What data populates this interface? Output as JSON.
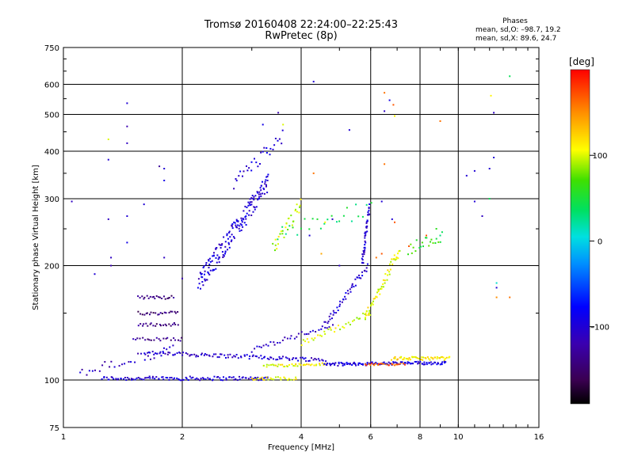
{
  "header": {
    "title_line1": "Tromsø 20160408 22:24:00–22:25:43",
    "title_line2": "RwPretec (8p)"
  },
  "stats": {
    "heading": "Phases",
    "line_o": "mean, sd,O: –98.7, 19.2",
    "line_x": "mean, sd,X:  89.6, 24.7"
  },
  "colorbar": {
    "unit_label": "[deg]",
    "ticks": [
      {
        "value": 100,
        "label": "100"
      },
      {
        "value": 0,
        "label": "0"
      },
      {
        "value": -100,
        "label": "–100"
      }
    ],
    "vmin": -190,
    "vmax": 200
  },
  "chart_data": {
    "type": "scatter",
    "title": "Tromsø 20160408 22:24:00–22:25:43",
    "subtitle": "RwPretec (8p)",
    "xlabel": "Frequency [MHz]",
    "ylabel": "Stationary phase Virtual Height [km]",
    "x_scale": "log",
    "y_scale": "log",
    "xlim": [
      1,
      16
    ],
    "ylim": [
      75,
      750
    ],
    "grid": true,
    "x_ticks": [
      {
        "value": 1,
        "label": "1"
      },
      {
        "value": 2,
        "label": "2"
      },
      {
        "value": 4,
        "label": "4"
      },
      {
        "value": 6,
        "label": "6"
      },
      {
        "value": 8,
        "label": "8"
      },
      {
        "value": 10,
        "label": "10"
      },
      {
        "value": 16,
        "label": "16"
      }
    ],
    "x_gridlines": [
      2,
      4,
      6,
      8,
      10
    ],
    "y_ticks": [
      {
        "value": 75,
        "label": "75"
      },
      {
        "value": 100,
        "label": "100"
      },
      {
        "value": 200,
        "label": "200"
      },
      {
        "value": 300,
        "label": "300"
      },
      {
        "value": 400,
        "label": "400"
      },
      {
        "value": 500,
        "label": "500"
      },
      {
        "value": 600,
        "label": "600"
      },
      {
        "value": 750,
        "label": "750"
      }
    ],
    "y_gridlines": [
      100,
      200,
      300,
      400,
      500,
      600
    ],
    "color_variable": "phase [deg]",
    "traces": [
      {
        "f_start": 1.25,
        "f_end": 3.3,
        "h_start": 101,
        "h_end": 101,
        "phase": -100,
        "n": 110,
        "spread": 0.012
      },
      {
        "f_start": 3.0,
        "f_end": 3.9,
        "h_start": 101,
        "h_end": 101,
        "phase": 110,
        "n": 25,
        "spread": 0.01
      },
      {
        "f_start": 1.6,
        "f_end": 4.6,
        "h_start": 118,
        "h_end": 113,
        "phase": -105,
        "n": 110,
        "spread": 0.012
      },
      {
        "f_start": 3.2,
        "f_end": 4.6,
        "h_start": 109,
        "h_end": 110,
        "phase": 110,
        "n": 40,
        "spread": 0.008
      },
      {
        "f_start": 4.6,
        "f_end": 9.3,
        "h_start": 110,
        "h_end": 111,
        "phase": -95,
        "n": 120,
        "spread": 0.01
      },
      {
        "f_start": 5.8,
        "f_end": 7.3,
        "h_start": 110,
        "h_end": 110,
        "phase": 170,
        "n": 25,
        "spread": 0.006
      },
      {
        "f_start": 6.8,
        "f_end": 9.5,
        "h_start": 114,
        "h_end": 114,
        "phase": 115,
        "n": 50,
        "spread": 0.01
      },
      {
        "f_start": 3.0,
        "f_end": 4.8,
        "h_start": 120,
        "h_end": 140,
        "phase": -110,
        "n": 35,
        "spread": 0.015
      },
      {
        "f_start": 4.6,
        "f_end": 5.9,
        "h_start": 140,
        "h_end": 200,
        "phase": -100,
        "n": 45,
        "spread": 0.02
      },
      {
        "f_start": 5.7,
        "f_end": 5.95,
        "h_start": 200,
        "h_end": 285,
        "phase": -100,
        "n": 45,
        "spread": 0.02
      },
      {
        "f_start": 4.0,
        "f_end": 6.0,
        "h_start": 125,
        "h_end": 150,
        "phase": 100,
        "n": 35,
        "spread": 0.02
      },
      {
        "f_start": 5.8,
        "f_end": 7.1,
        "h_start": 145,
        "h_end": 220,
        "phase": 105,
        "n": 55,
        "spread": 0.03
      },
      {
        "f_start": 2.2,
        "f_end": 3.3,
        "h_start": 180,
        "h_end": 330,
        "phase": -100,
        "n": 170,
        "spread": 0.06
      },
      {
        "f_start": 2.7,
        "f_end": 3.6,
        "h_start": 330,
        "h_end": 440,
        "phase": -100,
        "n": 30,
        "spread": 0.04
      },
      {
        "f_start": 3.4,
        "f_end": 4.0,
        "h_start": 220,
        "h_end": 290,
        "phase": 95,
        "n": 30,
        "spread": 0.04
      },
      {
        "f_start": 1.55,
        "f_end": 1.9,
        "h_start": 165,
        "h_end": 165,
        "phase": -140,
        "n": 22,
        "spread": 0.01
      },
      {
        "f_start": 1.55,
        "f_end": 1.95,
        "h_start": 150,
        "h_end": 150,
        "phase": -145,
        "n": 22,
        "spread": 0.01
      },
      {
        "f_start": 1.55,
        "f_end": 1.95,
        "h_start": 140,
        "h_end": 140,
        "phase": -140,
        "n": 22,
        "spread": 0.01
      },
      {
        "f_start": 1.5,
        "f_end": 2.0,
        "h_start": 128,
        "h_end": 128,
        "phase": -135,
        "n": 22,
        "spread": 0.01
      },
      {
        "f_start": 1.1,
        "f_end": 1.9,
        "h_start": 105,
        "h_end": 120,
        "phase": -110,
        "n": 30,
        "spread": 0.03
      },
      {
        "f_start": 7.5,
        "f_end": 9.0,
        "h_start": 220,
        "h_end": 240,
        "phase": 60,
        "n": 20,
        "spread": 0.04
      },
      {
        "f_start": 3.5,
        "f_end": 6.0,
        "h_start": 240,
        "h_end": 280,
        "phase": 40,
        "n": 25,
        "spread": 0.06
      }
    ],
    "scattered_points": [
      [
        1.05,
        295,
        -110
      ],
      [
        1.2,
        190,
        -100
      ],
      [
        1.3,
        430,
        100
      ],
      [
        1.32,
        210,
        -110
      ],
      [
        1.32,
        200,
        -120
      ],
      [
        1.45,
        535,
        -100
      ],
      [
        1.45,
        465,
        -120
      ],
      [
        1.45,
        420,
        -110
      ],
      [
        1.45,
        270,
        -100
      ],
      [
        1.45,
        230,
        -90
      ],
      [
        1.6,
        290,
        -100
      ],
      [
        1.75,
        365,
        -130
      ],
      [
        1.8,
        360,
        -100
      ],
      [
        1.8,
        335,
        -90
      ],
      [
        1.8,
        210,
        -110
      ],
      [
        3.2,
        470,
        -90
      ],
      [
        3.5,
        505,
        -120
      ],
      [
        3.6,
        470,
        100
      ],
      [
        4.3,
        610,
        -100
      ],
      [
        4.3,
        350,
        160
      ],
      [
        5.3,
        455,
        -100
      ],
      [
        6.5,
        570,
        160
      ],
      [
        6.5,
        510,
        -110
      ],
      [
        6.7,
        545,
        -90
      ],
      [
        6.85,
        530,
        170
      ],
      [
        6.9,
        495,
        110
      ],
      [
        6.5,
        370,
        160
      ],
      [
        6.4,
        295,
        -100
      ],
      [
        6.8,
        265,
        -100
      ],
      [
        6.9,
        260,
        170
      ],
      [
        9.0,
        480,
        160
      ],
      [
        10.5,
        345,
        -100
      ],
      [
        11.0,
        355,
        -100
      ],
      [
        12.0,
        360,
        -100
      ],
      [
        12.1,
        560,
        110
      ],
      [
        12.3,
        505,
        -110
      ],
      [
        12.3,
        385,
        -100
      ],
      [
        11.0,
        295,
        -100
      ],
      [
        11.5,
        270,
        -110
      ],
      [
        12.0,
        300,
        40
      ],
      [
        12.5,
        180,
        10
      ],
      [
        12.5,
        175,
        -100
      ],
      [
        12.5,
        165,
        150
      ],
      [
        13.5,
        630,
        40
      ],
      [
        13.5,
        165,
        160
      ],
      [
        9.0,
        240,
        30
      ],
      [
        9.1,
        245,
        40
      ],
      [
        8.8,
        250,
        60
      ],
      [
        8.3,
        240,
        170
      ],
      [
        7.5,
        225,
        170
      ],
      [
        6.4,
        215,
        170
      ],
      [
        6.2,
        210,
        160
      ],
      [
        5.0,
        200,
        -110
      ],
      [
        4.8,
        265,
        -110
      ],
      [
        4.6,
        260,
        110
      ],
      [
        4.2,
        240,
        -100
      ],
      [
        4.5,
        215,
        140
      ],
      [
        1.3,
        380,
        -100
      ],
      [
        1.3,
        265,
        -110
      ],
      [
        2.0,
        185,
        -120
      ]
    ]
  }
}
